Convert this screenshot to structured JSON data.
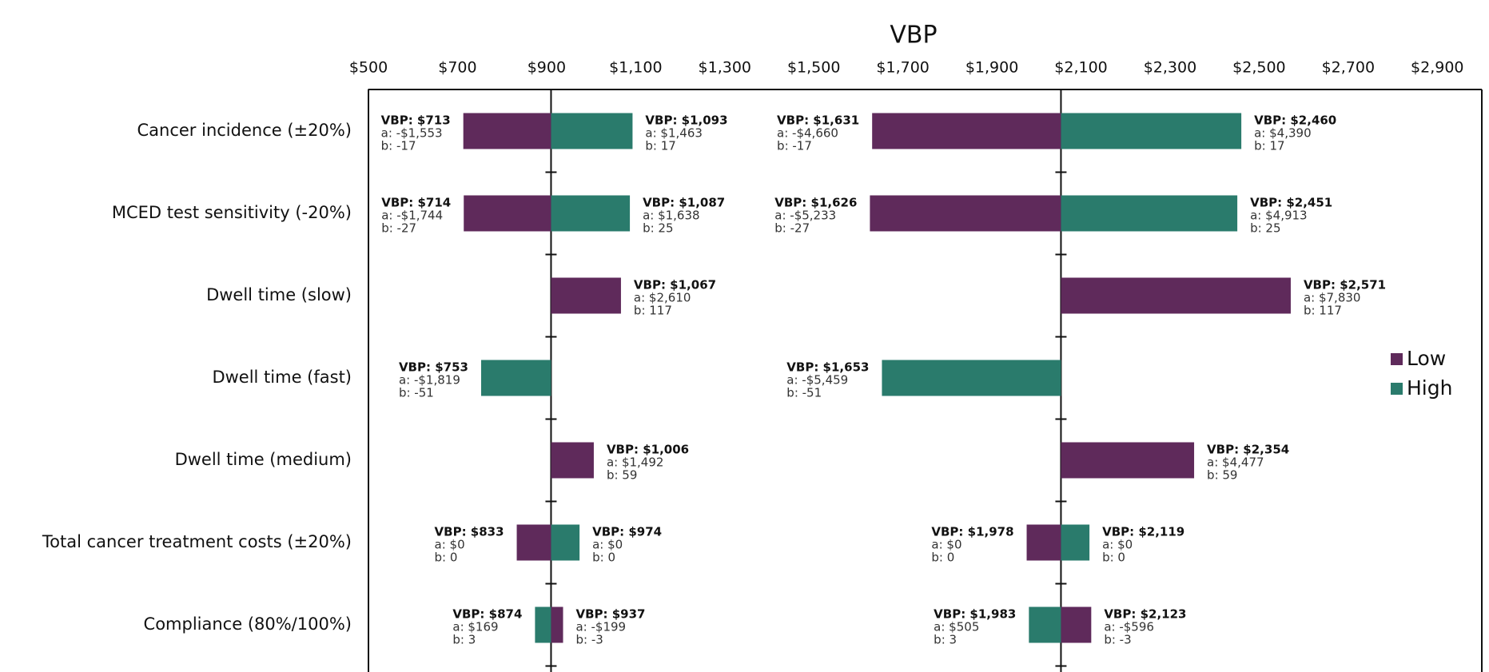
{
  "chart_data": {
    "type": "tornado",
    "title": "VBP",
    "xlim": [
      500,
      3000
    ],
    "xticks": [
      {
        "value": 500,
        "label": "$500"
      },
      {
        "value": 700,
        "label": "$700"
      },
      {
        "value": 900,
        "label": "$900"
      },
      {
        "value": 1100,
        "label": "$1,100"
      },
      {
        "value": 1300,
        "label": "$1,300"
      },
      {
        "value": 1500,
        "label": "$1,500"
      },
      {
        "value": 1700,
        "label": "$1,700"
      },
      {
        "value": 1900,
        "label": "$1,900"
      },
      {
        "value": 2100,
        "label": "$2,100"
      },
      {
        "value": 2300,
        "label": "$2,300"
      },
      {
        "value": 2500,
        "label": "$2,500"
      },
      {
        "value": 2700,
        "label": "$2,700"
      },
      {
        "value": 2900,
        "label": "$2,900"
      }
    ],
    "categories": [
      "Cancer incidence (±20%)",
      "MCED test sensitivity (-20%)",
      "Dwell time (slow)",
      "Dwell time (fast)",
      "Dwell time (medium)",
      "Total cancer treatment costs (±20%)",
      "Compliance (80%/100%)"
    ],
    "baselines": [
      910,
      2055
    ],
    "legend": "right",
    "series": [
      {
        "name": "Low",
        "color": "#5f2a5b",
        "panels": [
          {
            "values": [
              713,
              714,
              1067,
              null,
              1006,
              833,
              937
            ],
            "value_labels": [
              "VBP: $713",
              "VBP: $714",
              "VBP: $1,067",
              null,
              "VBP: $1,006",
              "VBP: $833",
              "VBP: $937"
            ],
            "a_labels": [
              "a: -$1,553",
              "a: -$1,744",
              "a: $2,610",
              null,
              "a: $1,492",
              "a: $0",
              "a: -$199"
            ],
            "b_labels": [
              "b: -17",
              "b: -27",
              "b: 117",
              null,
              "b: 59",
              "b: 0",
              "b: -3"
            ]
          },
          {
            "values": [
              1631,
              1626,
              2571,
              null,
              2354,
              1978,
              2123
            ],
            "value_labels": [
              "VBP: $1,631",
              "VBP: $1,626",
              "VBP: $2,571",
              null,
              "VBP: $2,354",
              "VBP: $1,978",
              "VBP: $2,123"
            ],
            "a_labels": [
              "a: -$4,660",
              "a: -$5,233",
              "a: $7,830",
              null,
              "a: $4,477",
              "a: $0",
              "a: -$596"
            ],
            "b_labels": [
              "b: -17",
              "b: -27",
              "b: 117",
              null,
              "b: 59",
              "b: 0",
              "b: -3"
            ]
          }
        ]
      },
      {
        "name": "High",
        "color": "#2a7b6c",
        "panels": [
          {
            "values": [
              1093,
              1087,
              null,
              753,
              null,
              974,
              874
            ],
            "value_labels": [
              "VBP: $1,093",
              "VBP: $1,087",
              null,
              "VBP: $753",
              null,
              "VBP: $974",
              "VBP: $874"
            ],
            "a_labels": [
              "a: $1,463",
              "a: $1,638",
              null,
              "a: -$1,819",
              null,
              "a: $0",
              "a: $169"
            ],
            "b_labels": [
              "b: 17",
              "b: 25",
              null,
              "b: -51",
              null,
              "b: 0",
              "b: 3"
            ]
          },
          {
            "values": [
              2460,
              2451,
              null,
              1653,
              null,
              2119,
              1983
            ],
            "value_labels": [
              "VBP: $2,460",
              "VBP: $2,451",
              null,
              "VBP: $1,653",
              null,
              "VBP: $2,119",
              "VBP: $1,983"
            ],
            "a_labels": [
              "a: $4,390",
              "a: $4,913",
              null,
              "a: -$5,459",
              null,
              "a: $0",
              "a: $505"
            ],
            "b_labels": [
              "b: 17",
              "b: 25",
              null,
              "b: -51",
              null,
              "b: 0",
              "b: 3"
            ]
          }
        ]
      }
    ]
  }
}
